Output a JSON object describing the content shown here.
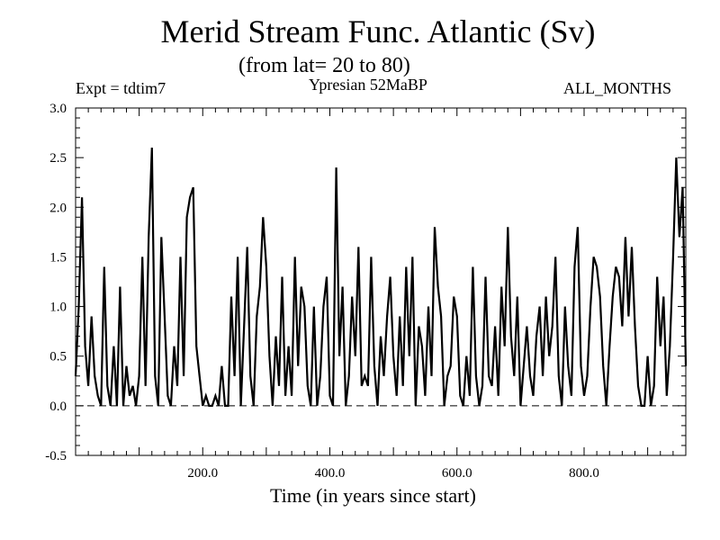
{
  "header": {
    "title": "Merid Stream Func. Atlantic (Sv)",
    "subtitle": "(from lat= 20 to 80)",
    "experiment": "Expt = tdtim7",
    "period": "Ypresian  52MaBP",
    "months": "ALL_MONTHS"
  },
  "chart_data": {
    "type": "line",
    "title": "Merid Stream Func. Atlantic (Sv)",
    "xlabel": "Time (in years since start)",
    "ylabel": "",
    "xlim": [
      0,
      960
    ],
    "ylim": [
      -0.5,
      3.0
    ],
    "xticks": [
      200,
      400,
      600,
      800
    ],
    "xtick_labels": [
      "200.0",
      "400.0",
      "600.0",
      "800.0"
    ],
    "yticks": [
      -0.5,
      0.0,
      0.5,
      1.0,
      1.5,
      2.0,
      2.5,
      3.0
    ],
    "ytick_labels": [
      "-0.5",
      "0.0",
      "0.5",
      "1.0",
      "1.5",
      "2.0",
      "2.5",
      "3.0"
    ],
    "zero_line": "dashed",
    "grid": false,
    "series": [
      {
        "color": "#000000",
        "x": [
          0,
          5,
          10,
          15,
          20,
          25,
          30,
          35,
          40,
          45,
          50,
          55,
          60,
          65,
          70,
          75,
          80,
          85,
          90,
          95,
          100,
          105,
          110,
          115,
          120,
          125,
          130,
          135,
          140,
          145,
          150,
          155,
          160,
          165,
          170,
          175,
          180,
          185,
          190,
          195,
          200,
          205,
          210,
          215,
          220,
          225,
          230,
          235,
          240,
          245,
          250,
          255,
          260,
          265,
          270,
          275,
          280,
          285,
          290,
          295,
          300,
          305,
          310,
          315,
          320,
          325,
          330,
          335,
          340,
          345,
          350,
          355,
          360,
          365,
          370,
          375,
          380,
          385,
          390,
          395,
          400,
          405,
          410,
          415,
          420,
          425,
          430,
          435,
          440,
          445,
          450,
          455,
          460,
          465,
          470,
          475,
          480,
          485,
          490,
          495,
          500,
          505,
          510,
          515,
          520,
          525,
          530,
          535,
          540,
          545,
          550,
          555,
          560,
          565,
          570,
          575,
          580,
          585,
          590,
          595,
          600,
          605,
          610,
          615,
          620,
          625,
          630,
          635,
          640,
          645,
          650,
          655,
          660,
          665,
          670,
          675,
          680,
          685,
          690,
          695,
          700,
          705,
          710,
          715,
          720,
          725,
          730,
          735,
          740,
          745,
          750,
          755,
          760,
          765,
          770,
          775,
          780,
          785,
          790,
          795,
          800,
          805,
          810,
          815,
          820,
          825,
          830,
          835,
          840,
          845,
          850,
          855,
          860,
          865,
          870,
          875,
          880,
          885,
          890,
          895,
          900,
          905,
          910,
          915,
          920,
          925,
          930,
          935,
          940,
          945,
          950,
          955,
          960
        ],
        "values": [
          0.3,
          1.0,
          2.1,
          0.6,
          0.2,
          0.9,
          0.3,
          0.1,
          0.0,
          1.4,
          0.2,
          0.0,
          0.6,
          0.0,
          1.2,
          0.0,
          0.4,
          0.1,
          0.2,
          0.0,
          0.3,
          1.5,
          0.2,
          1.7,
          2.6,
          0.3,
          0.0,
          1.7,
          0.9,
          0.1,
          0.0,
          0.6,
          0.2,
          1.5,
          0.3,
          1.9,
          2.1,
          2.2,
          0.6,
          0.3,
          0.0,
          0.1,
          0.0,
          0.0,
          0.1,
          0.0,
          0.4,
          0.0,
          0.0,
          1.1,
          0.3,
          1.5,
          0.0,
          0.8,
          1.6,
          0.3,
          0.0,
          0.9,
          1.2,
          1.9,
          1.4,
          0.5,
          0.0,
          0.7,
          0.2,
          1.3,
          0.1,
          0.6,
          0.1,
          1.5,
          0.4,
          1.2,
          1.0,
          0.2,
          0.0,
          1.0,
          0.0,
          0.3,
          1.0,
          1.3,
          0.1,
          0.0,
          2.4,
          0.5,
          1.2,
          0.0,
          0.3,
          1.1,
          0.5,
          1.6,
          0.2,
          0.3,
          0.2,
          1.5,
          0.4,
          0.0,
          0.7,
          0.3,
          0.9,
          1.3,
          0.5,
          0.1,
          0.9,
          0.2,
          1.4,
          0.5,
          1.5,
          0.0,
          0.8,
          0.6,
          0.1,
          1.0,
          0.3,
          1.8,
          1.2,
          0.9,
          0.0,
          0.3,
          0.4,
          1.1,
          0.9,
          0.1,
          0.0,
          0.5,
          0.1,
          1.4,
          0.3,
          0.0,
          0.2,
          1.3,
          0.3,
          0.2,
          0.8,
          0.1,
          1.2,
          0.6,
          1.8,
          0.7,
          0.3,
          1.1,
          0.0,
          0.4,
          0.8,
          0.3,
          0.1,
          0.7,
          1.0,
          0.3,
          1.1,
          0.5,
          0.8,
          1.5,
          0.3,
          0.0,
          1.0,
          0.4,
          0.1,
          1.4,
          1.8,
          0.4,
          0.1,
          0.3,
          1.0,
          1.5,
          1.4,
          1.1,
          0.4,
          0.0,
          0.6,
          1.1,
          1.4,
          1.3,
          0.8,
          1.7,
          0.9,
          1.6,
          0.8,
          0.2,
          0.0,
          0.0,
          0.5,
          0.0,
          0.2,
          1.3,
          0.6,
          1.1,
          0.1,
          0.6,
          1.5,
          2.5,
          1.7,
          2.2,
          0.4
        ]
      }
    ]
  }
}
